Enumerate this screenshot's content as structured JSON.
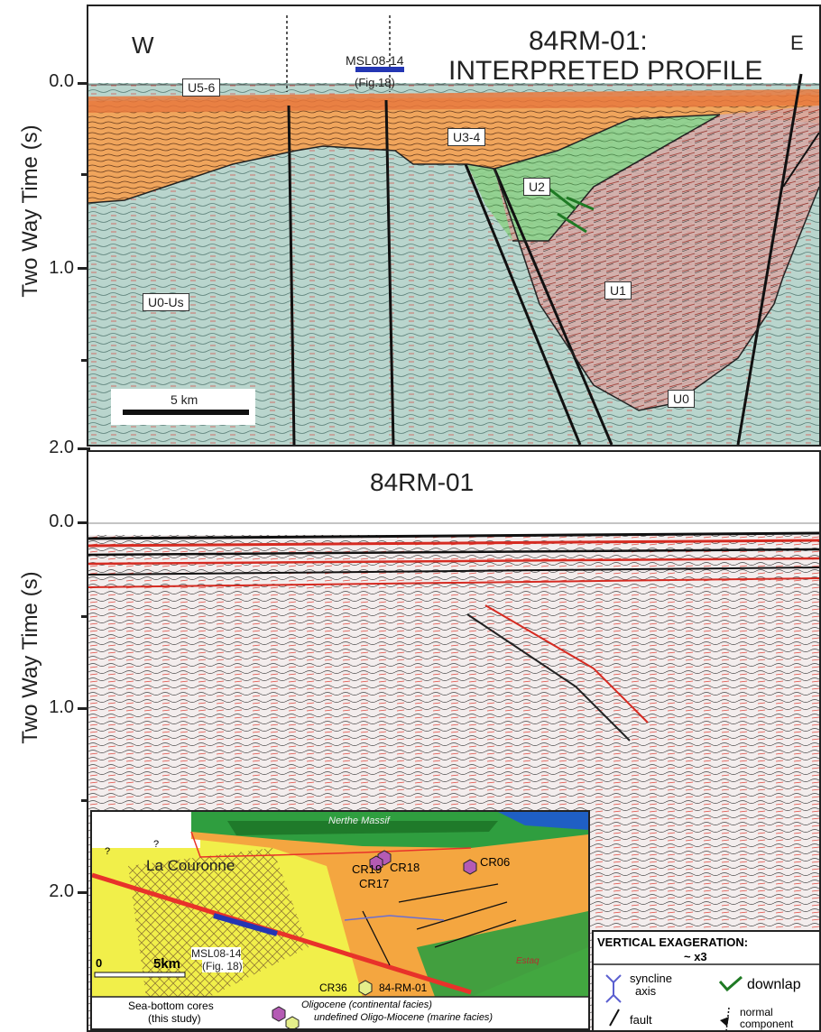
{
  "top_panel": {
    "title_line1": "84RM-01:",
    "title_line2": "INTERPRETED PROFILE",
    "west": "W",
    "east": "E",
    "msl_label": "MSL08-14",
    "fig_ref": "(Fig.18)",
    "scale_label": "5 km",
    "units": [
      "U5-6",
      "U3-4",
      "U2",
      "U1",
      "U0-Us",
      "U0"
    ]
  },
  "bottom_panel": {
    "title": "84RM-01"
  },
  "axis": {
    "ylabel": "Two Way Time (s)",
    "top_ticks": [
      "0.0",
      "1.0",
      "2.0"
    ],
    "bottom_ticks": [
      "0.0",
      "1.0",
      "2.0"
    ]
  },
  "map_inset": {
    "massif": "Nerthe Massif",
    "place": "La Couronne",
    "question_marks": [
      "?",
      "?"
    ],
    "msl_label": "MSL08-14",
    "fig_ref": "(Fig. 18)",
    "scale_zero": "0",
    "scale_label": "5km",
    "cores": [
      "CR19",
      "CR18",
      "CR17",
      "CR06",
      "CR36"
    ],
    "line_label": "84-RM-01",
    "basin_label": "Estaq"
  },
  "legend": {
    "cores_title_1": "Sea-bottom cores",
    "cores_title_2": "(this study)",
    "oligocene": "Oligocene (continental facies)",
    "undefined": "undefined Oligo-Miocene (marine facies)",
    "vex_1": "VERTICAL EXAGERATION:",
    "vex_2": "~ x3",
    "syncline_1": "syncline",
    "syncline_2": "axis",
    "downlap": "downlap",
    "fault": "fault",
    "normal_1": "normal",
    "normal_2": "component"
  },
  "colors": {
    "orange": "#f2a65a",
    "green": "#9fd79a",
    "seismic_bg": "#b7d3cc",
    "red": "#e8322a",
    "yellow": "#f1ef4a",
    "map_orange": "#f4a640",
    "purple": "#b45bb4"
  }
}
